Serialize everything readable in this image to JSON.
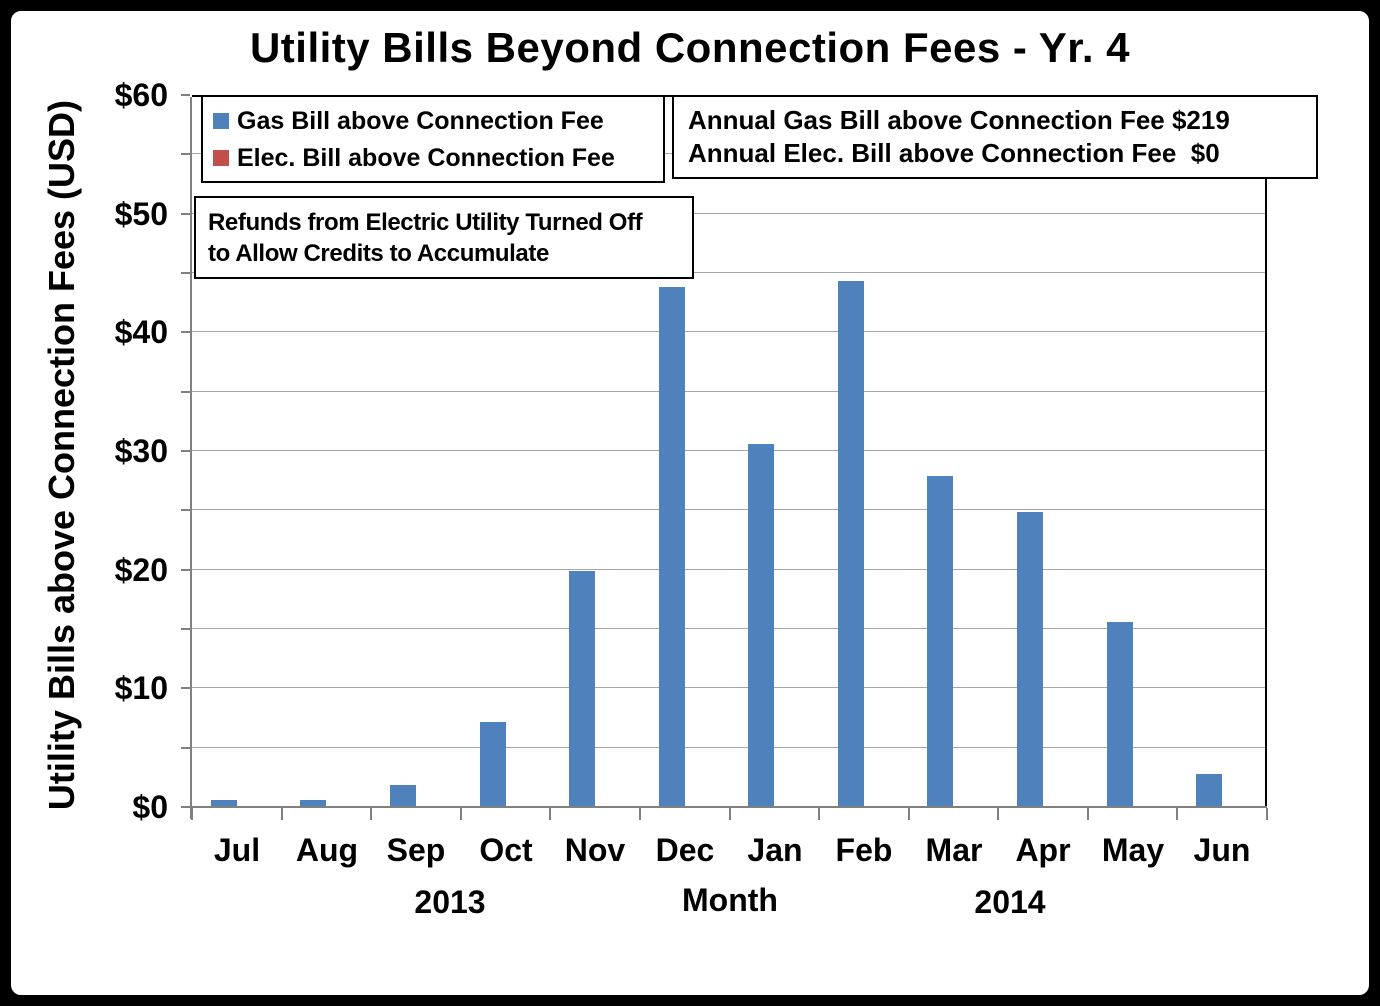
{
  "title": "Utility Bills Beyond Connection Fees - Yr. 4",
  "colors": {
    "gas_series": "#4F81BD",
    "elec_series": "#C0504D",
    "gridline": "#A6A6A6",
    "axis": "#808080",
    "plot_border": "#000000"
  },
  "legend": {
    "items": [
      {
        "label": "Gas Bill above Connection Fee",
        "color": "#4F81BD"
      },
      {
        "label": "Elec. Bill above Connection Fee",
        "color": "#C0504D"
      }
    ]
  },
  "annotations": {
    "annual_summary": {
      "line1": "Annual Gas Bill above Connection Fee $219",
      "line2": "Annual Elec. Bill above Connection Fee  $0"
    },
    "refunds_note": {
      "line1": "Refunds from Electric Utility Turned Off",
      "line2": "to Allow Credits to Accumulate"
    }
  },
  "axes": {
    "xlabel": "Month",
    "ylabel": "Utility Bills above Connection Fees (USD)",
    "year_2013": "2013",
    "year_2014": "2014"
  },
  "chart_data": {
    "type": "bar",
    "categories": [
      "Jul",
      "Aug",
      "Sep",
      "Oct",
      "Nov",
      "Dec",
      "Jan",
      "Feb",
      "Mar",
      "Apr",
      "May",
      "Jun"
    ],
    "series": [
      {
        "name": "Gas Bill above Connection Fee",
        "color": "#4F81BD",
        "values": [
          0.5,
          0.5,
          1.8,
          7.1,
          19.8,
          43.7,
          30.5,
          44.2,
          27.8,
          24.8,
          15.5,
          2.7
        ]
      },
      {
        "name": "Elec. Bill above Connection Fee",
        "color": "#C0504D",
        "values": [
          0,
          0,
          0,
          0,
          0,
          0,
          0,
          0,
          0,
          0,
          0,
          0
        ]
      }
    ],
    "title": "Utility Bills Beyond Connection Fees - Yr. 4",
    "xlabel": "Month",
    "ylabel": "Utility Bills above Connection Fees (USD)",
    "ylim": [
      0,
      60
    ],
    "y_currency_prefix": "$",
    "y_label_interval": 10,
    "gridline_interval": 5,
    "grid": "on",
    "legend_position": "top-left inside plot",
    "year_groups": [
      {
        "label": "2013",
        "categories": [
          "Jul",
          "Aug",
          "Sep",
          "Oct",
          "Nov",
          "Dec"
        ]
      },
      {
        "label": "2014",
        "categories": [
          "Jan",
          "Feb",
          "Mar",
          "Apr",
          "May",
          "Jun"
        ]
      }
    ]
  }
}
